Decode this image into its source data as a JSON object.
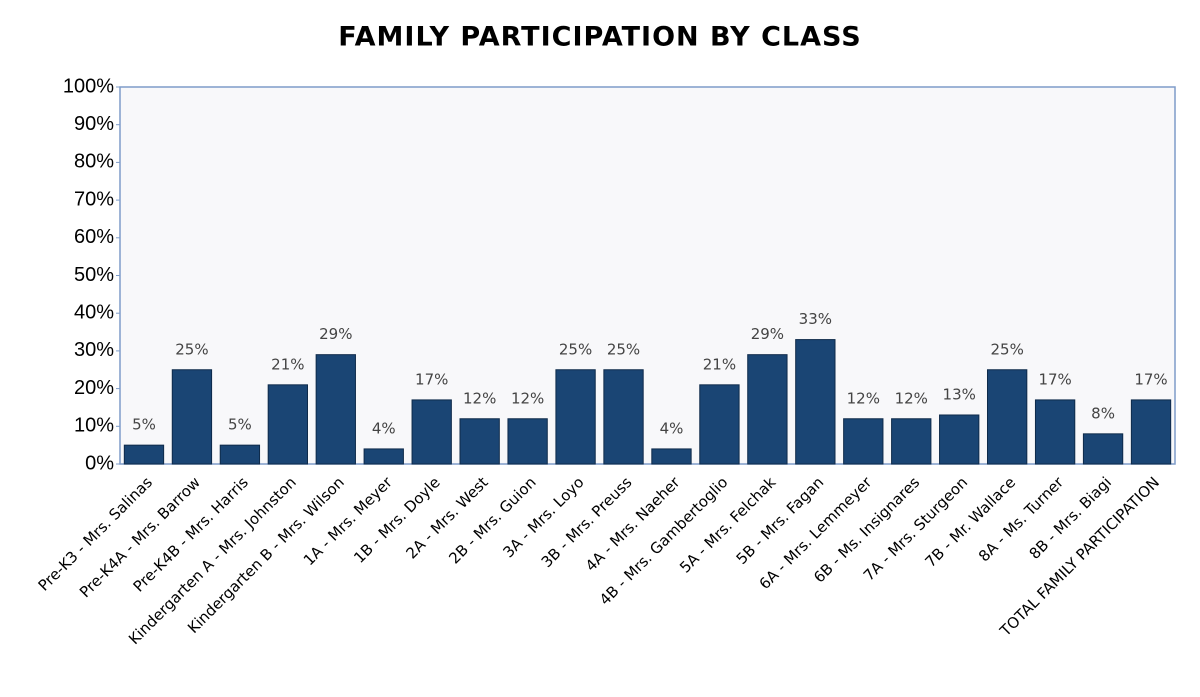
{
  "chart_data": {
    "type": "bar",
    "title": "FAMILY PARTICIPATION BY CLASS",
    "categories": [
      "Pre-K3 - Mrs. Salinas",
      "Pre-K4A - Mrs. Barrow",
      "Pre-K4B - Mrs. Harris",
      "Kindergarten A - Mrs. Johnston",
      "Kindergarten B - Mrs. Wilson",
      "1A - Mrs. Meyer",
      "1B - Mrs. Doyle",
      "2A - Mrs. West",
      "2B - Mrs. Guion",
      "3A - Mrs. Loyo",
      "3B - Mrs. Preuss",
      "4A - Mrs. Naeher",
      "4B - Mrs. Gambertoglio",
      "5A - Mrs. Felchak",
      "5B - Mrs. Fagan",
      "6A - Mrs. Lemmeyer",
      "6B - Ms. Insignares",
      "7A - Mrs. Sturgeon",
      "7B - Mr. Wallace",
      "8A - Ms. Turner",
      "8B - Mrs. Biagi",
      "TOTAL FAMILY PARTICIPATION"
    ],
    "values": [
      5,
      25,
      5,
      21,
      29,
      4,
      17,
      12,
      12,
      25,
      25,
      4,
      21,
      29,
      33,
      12,
      12,
      13,
      25,
      17,
      8,
      17
    ],
    "value_labels": [
      "5%",
      "25%",
      "5%",
      "21%",
      "29%",
      "4%",
      "17%",
      "12%",
      "12%",
      "25%",
      "25%",
      "4%",
      "21%",
      "29%",
      "33%",
      "12%",
      "12%",
      "13%",
      "25%",
      "17%",
      "8%",
      "17%"
    ],
    "color": "#1a4574",
    "ylim": [
      0,
      100
    ],
    "yticks": [
      {
        "value": 0,
        "label": "0%"
      },
      {
        "value": 10,
        "label": "10%"
      },
      {
        "value": 20,
        "label": "20%"
      },
      {
        "value": 30,
        "label": "30%"
      },
      {
        "value": 40,
        "label": "40%"
      },
      {
        "value": 50,
        "label": "50%"
      },
      {
        "value": 60,
        "label": "60%"
      },
      {
        "value": 70,
        "label": "70%"
      },
      {
        "value": 80,
        "label": "80%"
      },
      {
        "value": 90,
        "label": "90%"
      },
      {
        "value": 100,
        "label": "100%"
      }
    ]
  }
}
